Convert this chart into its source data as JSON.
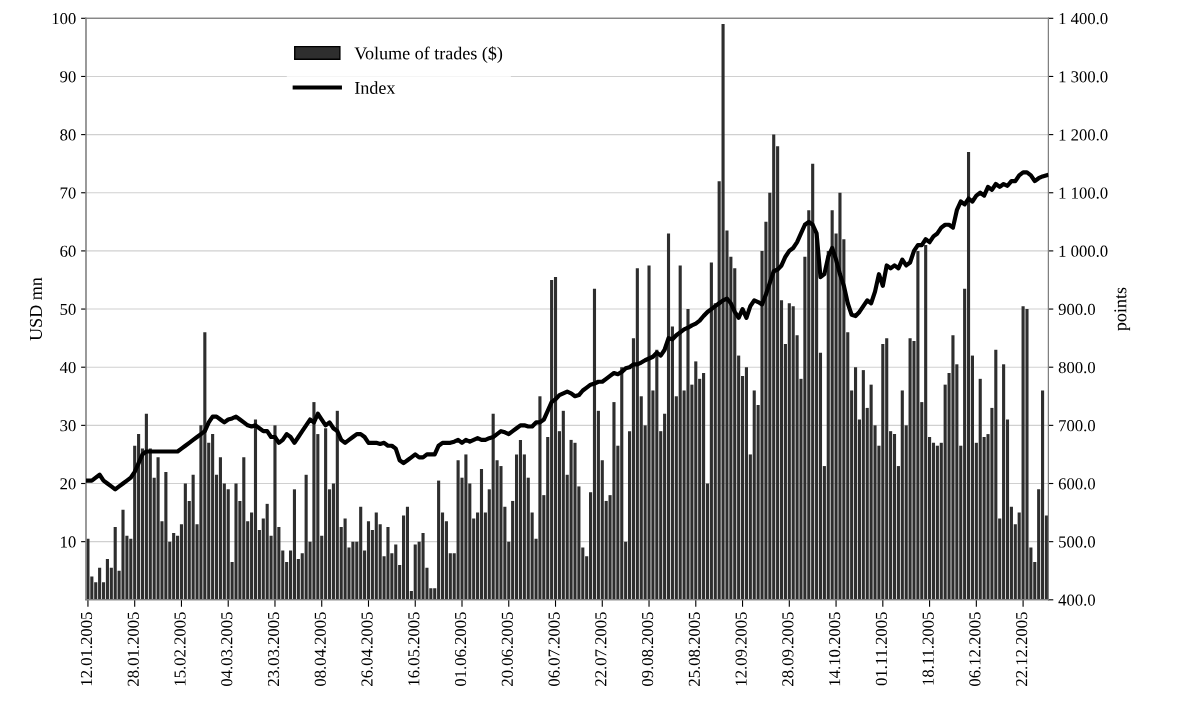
{
  "chart_data": {
    "type": "bar",
    "ylabel": "USD mn",
    "y2label": "points",
    "categories": [
      "12.01.2005",
      null,
      null,
      null,
      null,
      null,
      null,
      null,
      null,
      null,
      null,
      null,
      "28.01.2005",
      null,
      null,
      null,
      null,
      null,
      null,
      null,
      null,
      null,
      null,
      null,
      "15.02.2005",
      null,
      null,
      null,
      null,
      null,
      null,
      null,
      null,
      null,
      null,
      null,
      "04.03.2005",
      null,
      null,
      null,
      null,
      null,
      null,
      null,
      null,
      null,
      null,
      null,
      "23.03.2005",
      null,
      null,
      null,
      null,
      null,
      null,
      null,
      null,
      null,
      null,
      null,
      "08.04.2005",
      null,
      null,
      null,
      null,
      null,
      null,
      null,
      null,
      null,
      null,
      null,
      "26.04.2005",
      null,
      null,
      null,
      null,
      null,
      null,
      null,
      null,
      null,
      null,
      null,
      "16.05.2005",
      null,
      null,
      null,
      null,
      null,
      null,
      null,
      null,
      null,
      null,
      null,
      "01.06.2005",
      null,
      null,
      null,
      null,
      null,
      null,
      null,
      null,
      null,
      null,
      null,
      "20.06.2005",
      null,
      null,
      null,
      null,
      null,
      null,
      null,
      null,
      null,
      null,
      null,
      "06.07.2005",
      null,
      null,
      null,
      null,
      null,
      null,
      null,
      null,
      null,
      null,
      null,
      "22.07.2005",
      null,
      null,
      null,
      null,
      null,
      null,
      null,
      null,
      null,
      null,
      null,
      "09.08.2005",
      null,
      null,
      null,
      null,
      null,
      null,
      null,
      null,
      null,
      null,
      null,
      "25.08.2005",
      null,
      null,
      null,
      null,
      null,
      null,
      null,
      null,
      null,
      null,
      null,
      "12.09.2005",
      null,
      null,
      null,
      null,
      null,
      null,
      null,
      null,
      null,
      null,
      null,
      "28.09.2005",
      null,
      null,
      null,
      null,
      null,
      null,
      null,
      null,
      null,
      null,
      null,
      "14.10.2005",
      null,
      null,
      null,
      null,
      null,
      null,
      null,
      null,
      null,
      null,
      null,
      "01.11.2005",
      null,
      null,
      null,
      null,
      null,
      null,
      null,
      null,
      null,
      null,
      null,
      "18.11.2005",
      null,
      null,
      null,
      null,
      null,
      null,
      null,
      null,
      null,
      null,
      null,
      "06.12.2005",
      null,
      null,
      null,
      null,
      null,
      null,
      null,
      null,
      null,
      null,
      null,
      "22.12.2005",
      null,
      null,
      null,
      null,
      null,
      null
    ],
    "series": [
      {
        "name": "Volume of trades ($)",
        "color": "#2e2e2e",
        "values": [
          10.5,
          4,
          3,
          5.5,
          3,
          7,
          5.5,
          12.5,
          5,
          15.5,
          11,
          10.5,
          26.5,
          28.5,
          26,
          32,
          26,
          21,
          24.5,
          13.5,
          22,
          10,
          11.5,
          11,
          13,
          20,
          17,
          21.5,
          13,
          30,
          46,
          27,
          28.5,
          21.5,
          24.5,
          20,
          19,
          6.5,
          20,
          17,
          24.5,
          13.5,
          15,
          31,
          12,
          14,
          16.5,
          11,
          30,
          12.5,
          8.5,
          6.5,
          8.5,
          19,
          7,
          8,
          21.5,
          10,
          34,
          28.5,
          11,
          29.5,
          19,
          20,
          32.5,
          12.5,
          14,
          9,
          10,
          10,
          16,
          8.5,
          13.5,
          12,
          15,
          13,
          7.5,
          12.5,
          8,
          9.5,
          6,
          14.5,
          16,
          1.5,
          9.5,
          10,
          11.5,
          5.5,
          2,
          2,
          20.5,
          15,
          13.5,
          8,
          8,
          24,
          21,
          25,
          20,
          14,
          15,
          22.5,
          15,
          19,
          32,
          24,
          23,
          16,
          10,
          17,
          25,
          27.5,
          25,
          21,
          15,
          10.5,
          35,
          18,
          28,
          55,
          55.5,
          29,
          32.5,
          21.5,
          27.5,
          27,
          19.5,
          9,
          7.5,
          18.5,
          53.5,
          32.5,
          24,
          17,
          18,
          34,
          26.5,
          40,
          10,
          29,
          45,
          57,
          35,
          30,
          57.5,
          36,
          43,
          29,
          32,
          63,
          47,
          35,
          57.5,
          36,
          50,
          37,
          41,
          38,
          39,
          20,
          58,
          51,
          72,
          99,
          63.5,
          59,
          57,
          42,
          38.5,
          40,
          25,
          36,
          33.5,
          60,
          65,
          70,
          80,
          78,
          51.5,
          44,
          51,
          50.5,
          45.5,
          38,
          59,
          67,
          75,
          62,
          42.5,
          23,
          60,
          67,
          63,
          70,
          62,
          46,
          36,
          40,
          31,
          39.5,
          33,
          37,
          30,
          26.5,
          44,
          45,
          29,
          28.5,
          23,
          36,
          30,
          45,
          44.5,
          60,
          34,
          61,
          28,
          27,
          26.5,
          27,
          37,
          39,
          45.5,
          40.5,
          26.5,
          53.5,
          77,
          42,
          27,
          38,
          28,
          28.5,
          33,
          43,
          14,
          40.5,
          31,
          16,
          13,
          15,
          50.5,
          50,
          9,
          6.5,
          19,
          36,
          14.5
        ]
      },
      {
        "name": "Index",
        "type": "line",
        "axis": "y2",
        "color": "#000000",
        "values": [
          605,
          605,
          610,
          615,
          605,
          600,
          595,
          590,
          595,
          600,
          605,
          610,
          620,
          635,
          650,
          655,
          655,
          655,
          655,
          655,
          655,
          655,
          655,
          655,
          660,
          665,
          670,
          675,
          680,
          685,
          690,
          705,
          715,
          715,
          710,
          705,
          710,
          712,
          715,
          710,
          705,
          700,
          698,
          700,
          695,
          690,
          690,
          680,
          680,
          670,
          675,
          685,
          680,
          670,
          680,
          690,
          700,
          710,
          705,
          720,
          710,
          700,
          705,
          695,
          690,
          675,
          670,
          675,
          680,
          685,
          685,
          680,
          670,
          670,
          670,
          668,
          670,
          665,
          665,
          660,
          640,
          635,
          640,
          645,
          650,
          645,
          645,
          650,
          650,
          650,
          665,
          670,
          670,
          670,
          672,
          675,
          670,
          675,
          672,
          675,
          678,
          675,
          675,
          678,
          680,
          685,
          690,
          688,
          685,
          690,
          695,
          700,
          700,
          698,
          698,
          705,
          705,
          710,
          725,
          740,
          745,
          752,
          755,
          758,
          755,
          750,
          752,
          760,
          765,
          770,
          772,
          775,
          775,
          780,
          785,
          790,
          788,
          792,
          798,
          800,
          805,
          805,
          808,
          812,
          815,
          818,
          825,
          820,
          830,
          850,
          848,
          855,
          860,
          865,
          868,
          872,
          875,
          880,
          888,
          895,
          900,
          905,
          910,
          915,
          918,
          910,
          895,
          885,
          900,
          885,
          905,
          915,
          912,
          908,
          925,
          945,
          965,
          968,
          975,
          990,
          1000,
          1005,
          1015,
          1030,
          1045,
          1050,
          1045,
          1030,
          955,
          960,
          990,
          1005,
          985,
          960,
          940,
          910,
          890,
          888,
          895,
          905,
          915,
          910,
          930,
          960,
          940,
          975,
          970,
          975,
          970,
          985,
          975,
          980,
          1000,
          1010,
          1010,
          1020,
          1015,
          1025,
          1030,
          1040,
          1045,
          1045,
          1040,
          1070,
          1085,
          1080,
          1090,
          1085,
          1095,
          1100,
          1095,
          1110,
          1105,
          1115,
          1110,
          1115,
          1112,
          1120,
          1120,
          1130,
          1135,
          1135,
          1130,
          1120,
          1125,
          1128,
          1130
        ]
      }
    ],
    "ylim": [
      0,
      100
    ],
    "yticks": [
      10,
      20,
      30,
      40,
      50,
      60,
      70,
      80,
      90,
      100
    ],
    "y2lim": [
      400,
      1400
    ],
    "y2ticks": [
      {
        "value": 400,
        "label": "400.0"
      },
      {
        "value": 500,
        "label": "500.0"
      },
      {
        "value": 600,
        "label": "600.0"
      },
      {
        "value": 700,
        "label": "700.0"
      },
      {
        "value": 800,
        "label": "800.0"
      },
      {
        "value": 900,
        "label": "900.0"
      },
      {
        "value": 1000,
        "label": "1 000.0"
      },
      {
        "value": 1100,
        "label": "1 100.0"
      },
      {
        "value": 1200,
        "label": "1 200.0"
      },
      {
        "value": 1300,
        "label": "1 300.0"
      },
      {
        "value": 1400,
        "label": "1 400.0"
      }
    ],
    "grid": "y",
    "legend": "top"
  }
}
